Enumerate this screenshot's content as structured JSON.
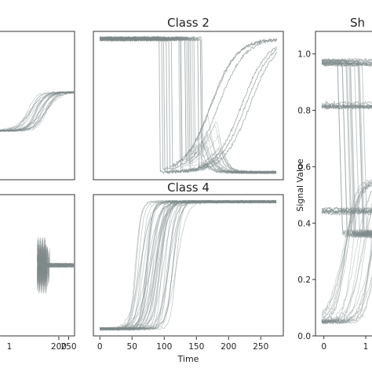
{
  "colors": {
    "trace": "#7f8a8a",
    "frame": "#333333",
    "background": "#ffffff"
  },
  "chart_data": [
    {
      "id": "partial-class-1",
      "type": "line",
      "title": "",
      "xlabel": "",
      "ylabel": "",
      "xlim": [
        0,
        280
      ],
      "ylim": [
        0,
        1
      ],
      "x_ticks": [],
      "y_ticks": [],
      "grid": false,
      "series_note_values": {
        "plateau": 0.59,
        "start": 0.33
      }
    },
    {
      "id": "class-2",
      "type": "line",
      "title": "Class 2",
      "xlabel": "",
      "ylabel": "",
      "xlim": [
        -10,
        285
      ],
      "ylim": [
        0,
        1
      ],
      "x_ticks": [],
      "y_ticks": [],
      "grid": false,
      "high": 0.95,
      "low": 0.05,
      "drop_times": [
        92,
        96,
        99,
        103,
        107,
        111
      ],
      "rise_mid_range": [
        170,
        235
      ]
    },
    {
      "id": "partial-class-3",
      "type": "line",
      "title": "",
      "xlabel": "",
      "ylabel": "",
      "xlim": [
        -115,
        280
      ],
      "ylim": [
        0,
        1
      ],
      "x_ticks": [
        "200",
        "250"
      ],
      "x_tick_values": [
        200,
        250
      ],
      "x_tick_labels_visible": [
        "200",
        "250"
      ],
      "x_tick_label_100_partial": "1",
      "grid": false,
      "baseline": 0.5
    },
    {
      "id": "class-4",
      "type": "line",
      "title": "Class 4",
      "xlabel": "Time",
      "ylabel": "",
      "xlim": [
        -10,
        285
      ],
      "ylim": [
        0,
        1
      ],
      "x_ticks": [
        "0",
        "50",
        "100",
        "150",
        "200",
        "250"
      ],
      "x_tick_values": [
        0,
        50,
        100,
        150,
        200,
        250
      ],
      "grid": false,
      "low": 0.05,
      "high": 0.95,
      "rise_mid_range": [
        55,
        120
      ]
    },
    {
      "id": "shapelet-panel",
      "type": "line",
      "title": "Sh",
      "xlabel": "",
      "ylabel": "Signal Value",
      "xlim": [
        -0.2,
        1.3
      ],
      "ylim": [
        0,
        1.08
      ],
      "x_ticks": [
        "0",
        "1"
      ],
      "x_tick_values": [
        0,
        1
      ],
      "y_ticks": [
        "0.0",
        "0.2",
        "0.4",
        "0.6",
        "0.8",
        "1.0"
      ],
      "y_tick_values": [
        0.0,
        0.2,
        0.4,
        0.6,
        0.8,
        1.0
      ],
      "grid": false,
      "levels": [
        0.97,
        0.82,
        0.44
      ]
    }
  ]
}
